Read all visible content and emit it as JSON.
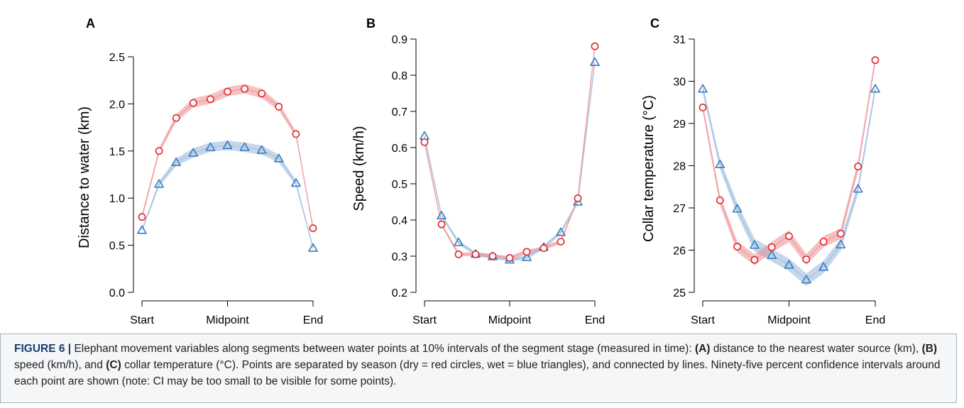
{
  "chart_data": [
    {
      "panel": "A",
      "type": "line",
      "ylabel": "Distance to water (km)",
      "ylim": [
        0,
        2.5
      ],
      "yticks": [
        0.0,
        0.5,
        1.0,
        1.5,
        2.0,
        2.5
      ],
      "ytick_labels": [
        "0.0",
        "0.5",
        "1.0",
        "1.5",
        "2.0",
        "2.5"
      ],
      "x": [
        0,
        1,
        2,
        3,
        4,
        5,
        6,
        7,
        8,
        9,
        10
      ],
      "xtick_labels": [
        {
          "x": 0,
          "label": "Start"
        },
        {
          "x": 5,
          "label": "Midpoint"
        },
        {
          "x": 10,
          "label": "End"
        }
      ],
      "series": [
        {
          "marker": "circle",
          "color": "#e0252b",
          "values": [
            0.8,
            1.5,
            1.85,
            2.01,
            2.05,
            2.13,
            2.16,
            2.11,
            1.97,
            1.68,
            0.68
          ],
          "ci": [
            0.03,
            0.03,
            0.04,
            0.05,
            0.05,
            0.05,
            0.05,
            0.05,
            0.04,
            0.03,
            0.02
          ]
        },
        {
          "marker": "triangle",
          "color": "#3a7bbf",
          "values": [
            0.66,
            1.15,
            1.38,
            1.48,
            1.54,
            1.56,
            1.54,
            1.51,
            1.42,
            1.16,
            0.47
          ],
          "ci": [
            0.02,
            0.03,
            0.04,
            0.05,
            0.05,
            0.05,
            0.05,
            0.05,
            0.04,
            0.03,
            0.02
          ]
        }
      ]
    },
    {
      "panel": "B",
      "type": "line",
      "ylabel": "Speed (km/h)",
      "ylim": [
        0.2,
        0.9
      ],
      "yticks": [
        0.2,
        0.3,
        0.4,
        0.5,
        0.6,
        0.7,
        0.8,
        0.9
      ],
      "ytick_labels": [
        "0.2",
        "0.3",
        "0.4",
        "0.5",
        "0.6",
        "0.7",
        "0.8",
        "0.9"
      ],
      "x": [
        0,
        1,
        2,
        3,
        4,
        5,
        6,
        7,
        8,
        9,
        10
      ],
      "xtick_labels": [
        {
          "x": 0,
          "label": "Start"
        },
        {
          "x": 5,
          "label": "Midpoint"
        },
        {
          "x": 10,
          "label": "End"
        }
      ],
      "series": [
        {
          "marker": "circle",
          "color": "#e0252b",
          "values": [
            0.615,
            0.388,
            0.305,
            0.305,
            0.3,
            0.295,
            0.312,
            0.322,
            0.34,
            0.46,
            0.88
          ],
          "ci": [
            0.006,
            0.005,
            0.005,
            0.005,
            0.005,
            0.005,
            0.005,
            0.005,
            0.005,
            0.006,
            0.008
          ]
        },
        {
          "marker": "triangle",
          "color": "#3a7bbf",
          "values": [
            0.632,
            0.412,
            0.338,
            0.306,
            0.299,
            0.29,
            0.297,
            0.325,
            0.366,
            0.45,
            0.836
          ],
          "ci": [
            0.006,
            0.005,
            0.005,
            0.005,
            0.005,
            0.005,
            0.005,
            0.005,
            0.005,
            0.006,
            0.008
          ]
        }
      ]
    },
    {
      "panel": "C",
      "type": "line",
      "ylabel": "Collar temperature (°C)",
      "ylim": [
        25,
        31
      ],
      "yticks": [
        25,
        26,
        27,
        28,
        29,
        30,
        31
      ],
      "ytick_labels": [
        "25",
        "26",
        "27",
        "28",
        "29",
        "30",
        "31"
      ],
      "x": [
        0,
        1,
        2,
        3,
        4,
        5,
        6,
        7,
        8,
        9,
        10
      ],
      "xtick_labels": [
        {
          "x": 0,
          "label": "Start"
        },
        {
          "x": 5,
          "label": "Midpoint"
        },
        {
          "x": 10,
          "label": "End"
        }
      ],
      "series": [
        {
          "marker": "circle",
          "color": "#e0252b",
          "values": [
            29.38,
            27.18,
            26.08,
            25.77,
            26.07,
            26.33,
            25.78,
            26.2,
            26.39,
            27.98,
            30.5
          ],
          "ci": [
            0.1,
            0.12,
            0.13,
            0.13,
            0.13,
            0.14,
            0.13,
            0.13,
            0.13,
            0.12,
            0.1
          ]
        },
        {
          "marker": "triangle",
          "color": "#3a7bbf",
          "values": [
            29.82,
            28.03,
            26.98,
            26.12,
            25.88,
            25.65,
            25.3,
            25.6,
            26.13,
            27.45,
            29.82
          ],
          "ci": [
            0.1,
            0.12,
            0.14,
            0.15,
            0.15,
            0.15,
            0.15,
            0.15,
            0.14,
            0.12,
            0.1
          ]
        }
      ]
    }
  ],
  "caption": {
    "label": "FIGURE 6 |",
    "parts": [
      {
        "text": " Elephant movement variables along segments between water points at 10% intervals of the segment stage (measured in time): "
      },
      {
        "text": "(A)",
        "bold": true
      },
      {
        "text": " distance to the nearest water source (km), "
      },
      {
        "text": "(B)",
        "bold": true
      },
      {
        "text": " speed (km/h), and "
      },
      {
        "text": "(C)",
        "bold": true
      },
      {
        "text": " collar temperature (°C). Points are separated by season (dry = red circles, wet = blue triangles), and connected by lines. Ninety-five percent confidence intervals around each point are shown (note: CI may be too small to be visible for some points)."
      }
    ]
  }
}
